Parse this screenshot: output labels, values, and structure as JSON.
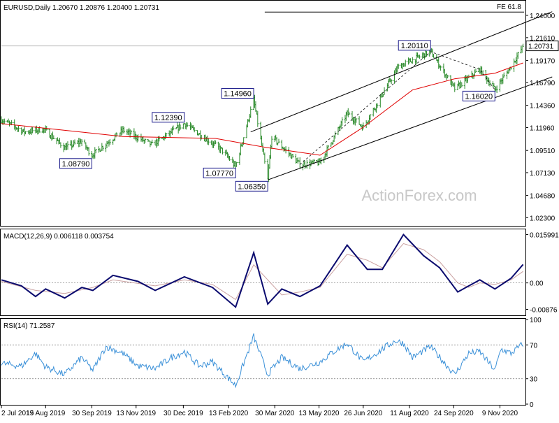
{
  "header": {
    "symbol_line": "EURUSD,Daily  1.20670 1.20876 1.20400 1.20731",
    "macd_label": "MACD(12,26,9) 0.006118 0.003754",
    "rsi_label": "RSI(14) 71.2587",
    "fib_label": "FE 61.8",
    "watermark": "ActionForex.com"
  },
  "colors": {
    "price_bars": "#2a8a2a",
    "sma": "#e00000",
    "channel": "#000000",
    "macd_line": "#0a0a6e",
    "macd_signal": "#c9a0a0",
    "rsi": "#3a90d8",
    "label_box_border": "#1a1a8a",
    "watermark": "#c8c8c8"
  },
  "chart_data": [
    {
      "type": "ohlc",
      "panel": "price",
      "symbol": "EURUSD",
      "timeframe": "Daily",
      "last_ohlc": {
        "open": 1.2067,
        "high": 1.20876,
        "low": 1.204,
        "close": 1.20731
      },
      "current_price_label": "1.20731",
      "ylim": [
        1.015,
        1.255
      ],
      "y_ticks": [
        "1.24000",
        "1.21610",
        "1.19170",
        "1.16790",
        "1.14360",
        "1.11960",
        "1.09510",
        "1.07130",
        "1.04680",
        "1.02300"
      ],
      "y_tick_values": [
        1.24,
        1.2161,
        1.1917,
        1.1679,
        1.1436,
        1.1196,
        1.0951,
        1.0713,
        1.0468,
        1.023
      ],
      "close_path": [
        {
          "date": "2019-07-02",
          "close": 1.128
        },
        {
          "date": "2019-07-25",
          "close": 1.115
        },
        {
          "date": "2019-08-13",
          "close": 1.118
        },
        {
          "date": "2019-09-03",
          "close": 1.0979
        },
        {
          "date": "2019-09-20",
          "close": 1.105
        },
        {
          "date": "2019-09-30",
          "close": 1.09
        },
        {
          "date": "2019-10-31",
          "close": 1.117
        },
        {
          "date": "2019-11-29",
          "close": 1.101
        },
        {
          "date": "2019-12-31",
          "close": 1.1239
        },
        {
          "date": "2020-02-07",
          "close": 1.095
        },
        {
          "date": "2020-02-20",
          "close": 1.0777
        },
        {
          "date": "2020-03-09",
          "close": 1.1496
        },
        {
          "date": "2020-03-23",
          "close": 1.0635
        },
        {
          "date": "2020-03-27",
          "close": 1.11
        },
        {
          "date": "2020-04-24",
          "close": 1.08
        },
        {
          "date": "2020-05-14",
          "close": 1.082
        },
        {
          "date": "2020-06-10",
          "close": 1.135
        },
        {
          "date": "2020-06-26",
          "close": 1.12
        },
        {
          "date": "2020-07-31",
          "close": 1.185
        },
        {
          "date": "2020-09-01",
          "close": 1.2011
        },
        {
          "date": "2020-09-25",
          "close": 1.1612
        },
        {
          "date": "2020-10-20",
          "close": 1.182
        },
        {
          "date": "2020-11-04",
          "close": 1.1602
        },
        {
          "date": "2020-11-20",
          "close": 1.185
        },
        {
          "date": "2020-12-02",
          "close": 1.2073
        }
      ],
      "sma_path": [
        {
          "date": "2019-07-02",
          "close": 1.124
        },
        {
          "date": "2019-10-31",
          "close": 1.11
        },
        {
          "date": "2020-01-31",
          "close": 1.108
        },
        {
          "date": "2020-03-23",
          "close": 1.098
        },
        {
          "date": "2020-05-14",
          "close": 1.09
        },
        {
          "date": "2020-06-26",
          "close": 1.12
        },
        {
          "date": "2020-08-14",
          "close": 1.16
        },
        {
          "date": "2020-09-25",
          "close": 1.172
        },
        {
          "date": "2020-11-04",
          "close": 1.178
        },
        {
          "date": "2020-12-02",
          "close": 1.189
        }
      ],
      "annotations": [
        {
          "label": "1.08790",
          "date": "2019-09-30",
          "price": 1.0879,
          "side": "below"
        },
        {
          "label": "1.12390",
          "date": "2019-12-31",
          "price": 1.1239,
          "side": "above"
        },
        {
          "label": "1.07770",
          "date": "2020-02-20",
          "price": 1.0777,
          "side": "below"
        },
        {
          "label": "1.14960",
          "date": "2020-03-09",
          "price": 1.1496,
          "side": "above"
        },
        {
          "label": "1.06350",
          "date": "2020-03-23",
          "price": 1.0635,
          "side": "below"
        },
        {
          "label": "1.20110",
          "date": "2020-09-01",
          "price": 1.2011,
          "side": "above"
        },
        {
          "label": "1.16020",
          "date": "2020-11-04",
          "price": 1.1602,
          "side": "below"
        }
      ],
      "channel_lines": [
        {
          "from": {
            "date": "2020-03-23",
            "price": 1.0635
          },
          "to": {
            "date": "2020-12-31",
            "price": 1.174
          }
        },
        {
          "from": {
            "date": "2020-03-06",
            "price": 1.115
          },
          "to": {
            "date": "2020-12-31",
            "price": 1.244
          }
        }
      ],
      "dashed_trend": [
        {
          "date": "2020-04-24",
          "price": 1.08
        },
        {
          "date": "2020-09-01",
          "price": 1.2011
        },
        {
          "date": "2020-10-20",
          "price": 1.182
        },
        {
          "date": "2020-11-04",
          "price": 1.1602
        }
      ],
      "fe_level": {
        "label": "FE 61.8",
        "price": 1.2436,
        "from_date": "2020-03-20"
      }
    },
    {
      "type": "line",
      "panel": "macd",
      "ylim": [
        -0.0105,
        0.0175
      ],
      "y_ticks": [
        "0.015991",
        "0.00",
        "-0.00876"
      ],
      "y_tick_values": [
        0.015991,
        0.0,
        -0.00876
      ],
      "series": [
        {
          "role": "main",
          "points": [
            {
              "date": "2019-07-02",
              "value": 0.001
            },
            {
              "date": "2019-07-22",
              "value": -0.001
            },
            {
              "date": "2019-08-05",
              "value": -0.0045
            },
            {
              "date": "2019-08-15",
              "value": -0.002
            },
            {
              "date": "2019-09-03",
              "value": -0.005
            },
            {
              "date": "2019-09-20",
              "value": -0.0015
            },
            {
              "date": "2019-10-01",
              "value": -0.0025
            },
            {
              "date": "2019-10-21",
              "value": 0.0025
            },
            {
              "date": "2019-11-15",
              "value": 0.0005
            },
            {
              "date": "2019-12-02",
              "value": -0.0025
            },
            {
              "date": "2019-12-31",
              "value": 0.002
            },
            {
              "date": "2020-01-28",
              "value": -0.0015
            },
            {
              "date": "2020-02-20",
              "value": -0.008
            },
            {
              "date": "2020-03-09",
              "value": 0.01
            },
            {
              "date": "2020-03-23",
              "value": -0.007
            },
            {
              "date": "2020-04-06",
              "value": -0.002
            },
            {
              "date": "2020-04-24",
              "value": -0.0045
            },
            {
              "date": "2020-05-14",
              "value": -0.001
            },
            {
              "date": "2020-06-10",
              "value": 0.0125
            },
            {
              "date": "2020-06-30",
              "value": 0.0045
            },
            {
              "date": "2020-07-15",
              "value": 0.0045
            },
            {
              "date": "2020-08-05",
              "value": 0.016
            },
            {
              "date": "2020-08-25",
              "value": 0.009
            },
            {
              "date": "2020-09-10",
              "value": 0.005
            },
            {
              "date": "2020-09-28",
              "value": -0.003
            },
            {
              "date": "2020-10-09",
              "value": -0.001
            },
            {
              "date": "2020-10-20",
              "value": 0.001
            },
            {
              "date": "2020-11-04",
              "value": -0.002
            },
            {
              "date": "2020-11-20",
              "value": 0.0015
            },
            {
              "date": "2020-12-02",
              "value": 0.0061
            }
          ]
        },
        {
          "role": "signal",
          "points": [
            {
              "date": "2019-07-02",
              "value": 0.0005
            },
            {
              "date": "2019-08-05",
              "value": -0.0025
            },
            {
              "date": "2019-09-03",
              "value": -0.0035
            },
            {
              "date": "2019-10-01",
              "value": -0.0015
            },
            {
              "date": "2019-10-21",
              "value": 0.001
            },
            {
              "date": "2019-12-02",
              "value": -0.001
            },
            {
              "date": "2019-12-31",
              "value": 0.001
            },
            {
              "date": "2020-01-28",
              "value": -0.0005
            },
            {
              "date": "2020-02-20",
              "value": -0.0055
            },
            {
              "date": "2020-03-09",
              "value": 0.006
            },
            {
              "date": "2020-03-23",
              "value": 0.001
            },
            {
              "date": "2020-04-06",
              "value": -0.004
            },
            {
              "date": "2020-04-24",
              "value": -0.003
            },
            {
              "date": "2020-05-14",
              "value": -0.0015
            },
            {
              "date": "2020-06-10",
              "value": 0.0095
            },
            {
              "date": "2020-06-30",
              "value": 0.0075
            },
            {
              "date": "2020-07-15",
              "value": 0.005
            },
            {
              "date": "2020-08-05",
              "value": 0.013
            },
            {
              "date": "2020-08-25",
              "value": 0.011
            },
            {
              "date": "2020-09-10",
              "value": 0.007
            },
            {
              "date": "2020-09-28",
              "value": 0.0
            },
            {
              "date": "2020-10-09",
              "value": -0.0015
            },
            {
              "date": "2020-10-20",
              "value": 0.0
            },
            {
              "date": "2020-11-04",
              "value": -0.0005
            },
            {
              "date": "2020-11-20",
              "value": 0.001
            },
            {
              "date": "2020-12-02",
              "value": 0.0038
            }
          ]
        }
      ]
    },
    {
      "type": "line",
      "panel": "rsi",
      "ylim": [
        0,
        100
      ],
      "y_ticks": [
        "100",
        "70",
        "30",
        "0"
      ],
      "y_tick_values": [
        100,
        70,
        30,
        0
      ],
      "levels": [
        70,
        30
      ],
      "series": [
        {
          "role": "rsi",
          "points": [
            {
              "date": "2019-07-02",
              "value": 48
            },
            {
              "date": "2019-07-22",
              "value": 45
            },
            {
              "date": "2019-08-05",
              "value": 60
            },
            {
              "date": "2019-08-15",
              "value": 44
            },
            {
              "date": "2019-09-03",
              "value": 35
            },
            {
              "date": "2019-09-20",
              "value": 55
            },
            {
              "date": "2019-10-01",
              "value": 40
            },
            {
              "date": "2019-10-14",
              "value": 68
            },
            {
              "date": "2019-10-31",
              "value": 60
            },
            {
              "date": "2019-11-15",
              "value": 45
            },
            {
              "date": "2019-12-02",
              "value": 42
            },
            {
              "date": "2019-12-18",
              "value": 55
            },
            {
              "date": "2019-12-31",
              "value": 62
            },
            {
              "date": "2020-01-15",
              "value": 45
            },
            {
              "date": "2020-01-28",
              "value": 50
            },
            {
              "date": "2020-02-20",
              "value": 22
            },
            {
              "date": "2020-03-09",
              "value": 80
            },
            {
              "date": "2020-03-23",
              "value": 35
            },
            {
              "date": "2020-04-06",
              "value": 55
            },
            {
              "date": "2020-04-24",
              "value": 42
            },
            {
              "date": "2020-05-14",
              "value": 50
            },
            {
              "date": "2020-05-25",
              "value": 60
            },
            {
              "date": "2020-06-10",
              "value": 72
            },
            {
              "date": "2020-06-26",
              "value": 50
            },
            {
              "date": "2020-07-15",
              "value": 65
            },
            {
              "date": "2020-07-28",
              "value": 75
            },
            {
              "date": "2020-08-05",
              "value": 72
            },
            {
              "date": "2020-08-14",
              "value": 55
            },
            {
              "date": "2020-09-01",
              "value": 68
            },
            {
              "date": "2020-09-14",
              "value": 50
            },
            {
              "date": "2020-09-25",
              "value": 35
            },
            {
              "date": "2020-10-09",
              "value": 60
            },
            {
              "date": "2020-10-20",
              "value": 62
            },
            {
              "date": "2020-11-04",
              "value": 40
            },
            {
              "date": "2020-11-10",
              "value": 65
            },
            {
              "date": "2020-11-20",
              "value": 60
            },
            {
              "date": "2020-12-02",
              "value": 71.3
            }
          ]
        }
      ]
    }
  ],
  "x_axis": {
    "start_date": "2019-07-02",
    "end_date": "2020-12-03",
    "tick_labels": [
      "2 Jul 2019",
      "15 Aug 2019",
      "30 Sep 2019",
      "13 Nov 2019",
      "30 Dec 2019",
      "13 Feb 2020",
      "30 Mar 2020",
      "13 May 2020",
      "26 Jun 2020",
      "11 Aug 2020",
      "24 Sep 2020",
      "9 Nov 2020"
    ],
    "tick_dates": [
      "2019-07-02",
      "2019-08-15",
      "2019-09-30",
      "2019-11-13",
      "2019-12-30",
      "2020-02-13",
      "2020-03-30",
      "2020-05-13",
      "2020-06-26",
      "2020-08-11",
      "2020-09-24",
      "2020-11-09"
    ]
  }
}
